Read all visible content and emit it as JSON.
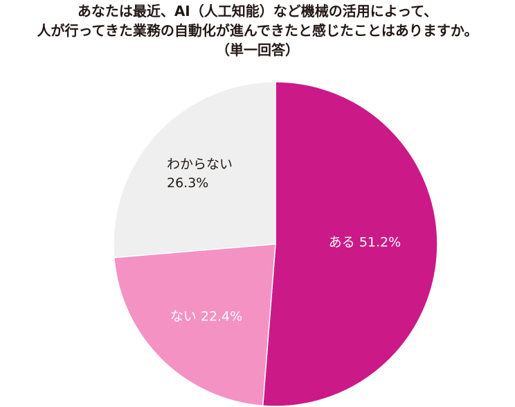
{
  "title": {
    "line1": "あなたは最近、AI（人工知能）など機械の活用によって、",
    "line2": "人が行ってきた業務の自動化が進んできたと感じたことはありますか。",
    "line3": "（単一回答）"
  },
  "chart_data": {
    "type": "pie",
    "title": "あなたは最近、AI（人工知能）など機械の活用によって、人が行ってきた業務の自動化が進んできたと感じたことはありますか。（単一回答）",
    "slices": [
      {
        "label": "ある",
        "value": 51.2,
        "value_text": "51.2%",
        "color": "#cb1a87",
        "text_color": "#ffffff"
      },
      {
        "label": "ない",
        "value": 22.4,
        "value_text": "22.4%",
        "color": "#f492c4",
        "text_color": "#ffffff"
      },
      {
        "label": "わからない",
        "value": 26.3,
        "value_text": "26.3%",
        "color": "#efefef",
        "text_color": "#231815"
      }
    ],
    "start": "12 o'clock",
    "direction": "clockwise"
  }
}
